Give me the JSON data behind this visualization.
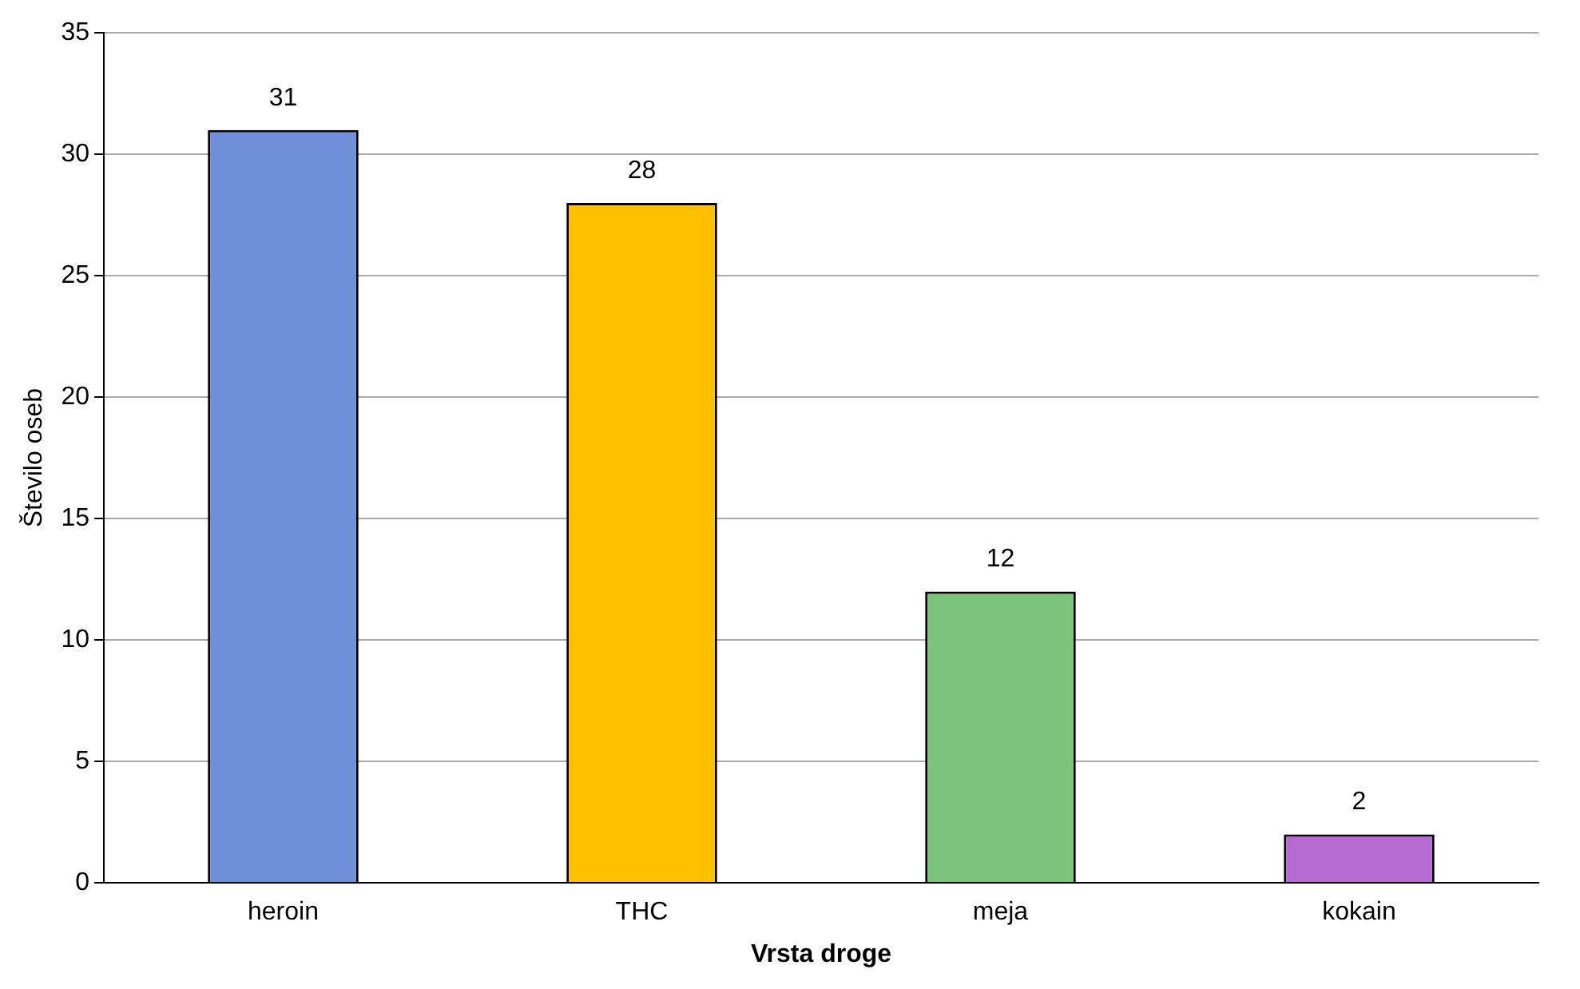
{
  "chart_data": {
    "type": "bar",
    "xlabel": "Vrsta droge",
    "ylabel": "Število oseb",
    "categories": [
      "heroin",
      "THC",
      "meja",
      "kokain"
    ],
    "values": [
      31,
      28,
      12,
      2
    ],
    "colors": [
      "#6f8fd8",
      "#ffc000",
      "#7cc47c",
      "#b46ad0"
    ],
    "ylim": [
      0,
      35
    ],
    "yticks": [
      0,
      5,
      10,
      15,
      20,
      25,
      30,
      35
    ],
    "grid": "y",
    "data_labels": true
  }
}
